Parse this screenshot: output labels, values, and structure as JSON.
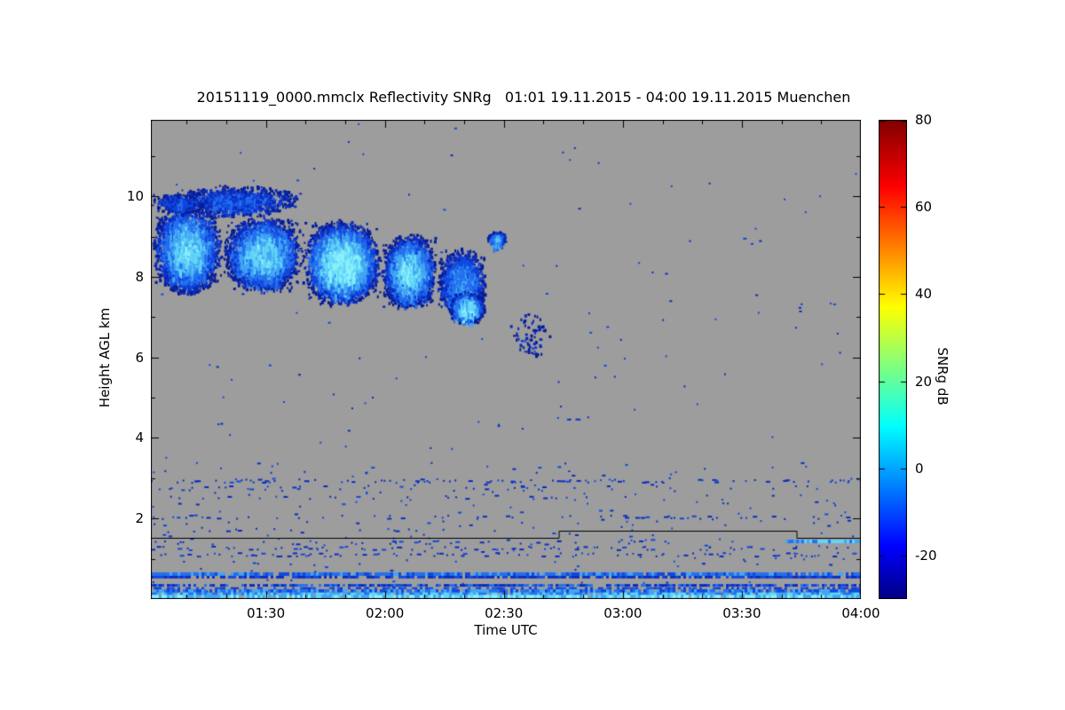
{
  "title": "20151119_0000.mmclx Reflectivity SNRg   01:01 19.11.2015 - 04:00 19.11.2015 Muenchen",
  "chart_data": {
    "type": "heatmap",
    "title": "20151119_0000.mmclx Reflectivity SNRg   01:01 19.11.2015 - 04:00 19.11.2015 Muenchen",
    "xlabel": "Time UTC",
    "ylabel": "Height AGL km",
    "colorbar_label": "SNRg dB",
    "x_axis": {
      "start_min": 61,
      "end_min": 240,
      "ticks": [
        {
          "label": "01:30",
          "t": 90
        },
        {
          "label": "02:00",
          "t": 120
        },
        {
          "label": "02:30",
          "t": 150
        },
        {
          "label": "03:00",
          "t": 180
        },
        {
          "label": "03:30",
          "t": 210
        },
        {
          "label": "04:00",
          "t": 240
        }
      ],
      "minor_step_min": 10
    },
    "y_axis": {
      "min_km": 0,
      "max_km": 11.9,
      "ticks": [
        {
          "label": "2",
          "v": 2
        },
        {
          "label": "4",
          "v": 4
        },
        {
          "label": "6",
          "v": 6
        },
        {
          "label": "8",
          "v": 8
        },
        {
          "label": "10",
          "v": 10
        }
      ],
      "minor_step_km": 1
    },
    "colorbar": {
      "min_db": -30,
      "max_db": 80,
      "ticks": [
        {
          "label": "80",
          "v": 80
        },
        {
          "label": "60",
          "v": 60
        },
        {
          "label": "40",
          "v": 40
        },
        {
          "label": "20",
          "v": 20
        },
        {
          "label": "0",
          "v": 0
        },
        {
          "label": "-20",
          "v": -20
        }
      ],
      "jet_stops": [
        [
          0.0,
          "#000083"
        ],
        [
          0.11,
          "#0000ff"
        ],
        [
          0.36,
          "#00ffff"
        ],
        [
          0.61,
          "#ffff00"
        ],
        [
          0.86,
          "#ff0000"
        ],
        [
          1.0,
          "#800000"
        ]
      ]
    },
    "background_color": "#9d9d9d",
    "frame_color": "#000000",
    "cloud_palette": [
      "#071d96",
      "#0a2cc0",
      "#1048e0",
      "#2470ee",
      "#43a6f3",
      "#63d6f8",
      "#8aeffb"
    ],
    "seed": 20151119,
    "clouds": [
      {
        "t0": 61,
        "t1": 79,
        "h0": 7.55,
        "h1": 9.85,
        "n": 2800,
        "i": 0.8
      },
      {
        "t0": 65,
        "t1": 99,
        "h0": 9.5,
        "h1": 10.3,
        "n": 1000,
        "i": 0.4
      },
      {
        "t0": 61,
        "t1": 75,
        "h0": 9.6,
        "h1": 10.1,
        "n": 300,
        "i": 0.35
      },
      {
        "t0": 79,
        "t1": 99,
        "h0": 7.6,
        "h1": 9.55,
        "n": 2800,
        "i": 0.8
      },
      {
        "t0": 99,
        "t1": 119,
        "h0": 7.3,
        "h1": 9.45,
        "n": 3600,
        "i": 0.95
      },
      {
        "t0": 119,
        "t1": 133,
        "h0": 7.2,
        "h1": 9.1,
        "n": 2400,
        "i": 0.85
      },
      {
        "t0": 133,
        "t1": 145.5,
        "h0": 6.95,
        "h1": 8.75,
        "n": 1500,
        "i": 0.6
      },
      {
        "t0": 136,
        "t1": 145,
        "h0": 6.85,
        "h1": 7.65,
        "n": 800,
        "i": 0.9
      },
      {
        "t0": 145.5,
        "t1": 150.5,
        "h0": 8.8,
        "h1": 9.15,
        "n": 220,
        "i": 0.7
      },
      {
        "t0": 150,
        "t1": 162,
        "h0": 6.0,
        "h1": 7.2,
        "n": 70,
        "i": 0.2
      }
    ],
    "speck_rows": [
      {
        "t0": 61,
        "t1": 240,
        "h": 2.95,
        "p": 0.4
      },
      {
        "t0": 61,
        "t1": 240,
        "h": 2.78,
        "p": 0.18
      },
      {
        "t0": 61,
        "t1": 175,
        "h": 2.55,
        "p": 0.18
      },
      {
        "t0": 61,
        "t1": 240,
        "h": 2.05,
        "p": 0.28
      },
      {
        "t0": 61,
        "t1": 140,
        "h": 1.75,
        "p": 0.22
      },
      {
        "t0": 61,
        "t1": 165,
        "h": 1.42,
        "p": 0.3
      },
      {
        "t0": 61,
        "t1": 240,
        "h": 1.28,
        "p": 0.45
      },
      {
        "t0": 61,
        "t1": 240,
        "h": 1.12,
        "p": 0.35
      },
      {
        "t0": 160,
        "t1": 172,
        "h": 4.5,
        "p": 0.5
      },
      {
        "t0": 154,
        "t1": 158,
        "h": 6.2,
        "p": 0.4
      },
      {
        "t0": 176,
        "t1": 192,
        "h": 1.45,
        "p": 0.5
      }
    ],
    "noise_specks": {
      "count_total": 170,
      "count_low": 240,
      "low_max_h": 3.4,
      "colors": [
        "#0a2cc0",
        "#1048e0"
      ]
    },
    "bottom_rows": [
      {
        "h": 0.62,
        "th": 4,
        "p": 0.9,
        "colors": [
          "#1048e0",
          "#2470ee",
          "#2470ee",
          "#43a6f3"
        ]
      },
      {
        "h": 0.545,
        "th": 3,
        "p": 0.8,
        "colors": [
          "#0a2cc0",
          "#1048e0"
        ]
      },
      {
        "h": 0.34,
        "th": 3,
        "p": 0.75,
        "colors": [
          "#1048e0",
          "#0a2cc0",
          "#2470ee"
        ]
      },
      {
        "h": 0.27,
        "th": 2,
        "p": 0.5,
        "colors": [
          "#0a2cc0",
          "#1048e0"
        ]
      },
      {
        "h": 0.2,
        "th": 4,
        "p": 0.9,
        "colors": [
          "#2470ee",
          "#43a6f3",
          "#1048e0"
        ]
      },
      {
        "h": 0.13,
        "th": 3,
        "p": 0.95,
        "colors": [
          "#63d6f8",
          "#43a6f3",
          "#2470ee"
        ]
      },
      {
        "h": 0.06,
        "th": 4,
        "p": 0.97,
        "colors": [
          "#63d6f8",
          "#8aeffb",
          "#43a6f3"
        ]
      },
      {
        "t0": 221,
        "t1": 240,
        "h": 1.43,
        "th": 4,
        "p": 0.95,
        "colors": [
          "#63d6f8",
          "#43a6f3",
          "#2470ee"
        ]
      }
    ],
    "boundary_line": {
      "color": "#000000",
      "segments": [
        {
          "t0": 61,
          "t1": 164,
          "h": 1.52
        },
        {
          "t0": 164,
          "t1": 224,
          "h": 1.7
        },
        {
          "t0": 224,
          "t1": 240,
          "h": 1.52
        }
      ]
    }
  }
}
